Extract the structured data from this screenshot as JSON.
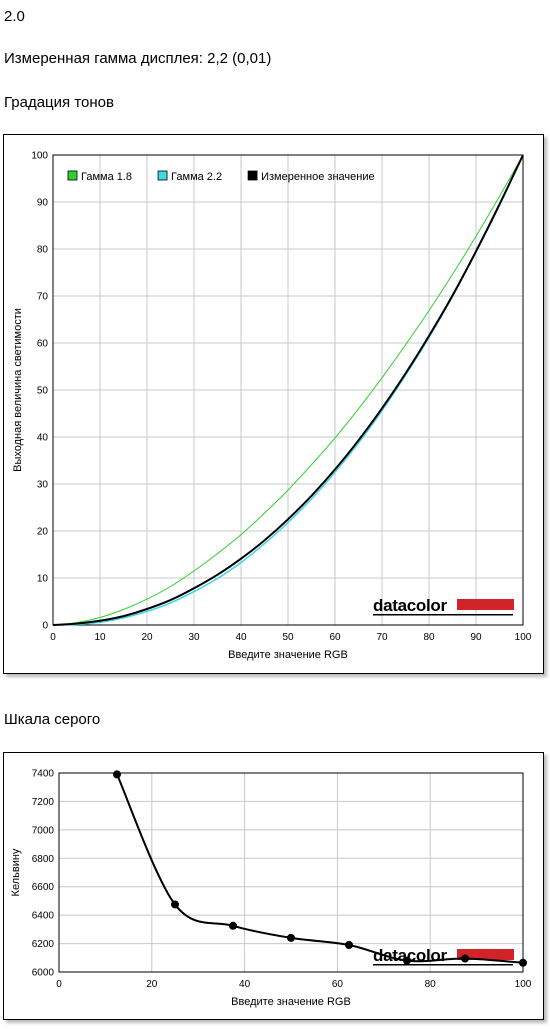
{
  "header": {
    "version": "2.0",
    "measured_gamma": "Измеренная гамма дисплея: 2,2 (0,01)",
    "tone_title": "Градация тонов",
    "gray_title": "Шкала серого"
  },
  "logo": {
    "text": "datacolor",
    "accent_color": "#d2232a"
  },
  "chart_data": [
    {
      "type": "line",
      "xlabel": "Введите значение RGB",
      "ylabel": "Выходная величина светимости",
      "xlim": [
        0,
        100
      ],
      "ylim": [
        0,
        100
      ],
      "xticks": [
        0,
        10,
        20,
        30,
        40,
        50,
        60,
        70,
        80,
        90,
        100
      ],
      "yticks": [
        0,
        10,
        20,
        30,
        40,
        50,
        60,
        70,
        80,
        90,
        100
      ],
      "grid": true,
      "legend": "top-left",
      "series": [
        {
          "name": "Гамма 1.8",
          "color": "#2ed12e",
          "width": 1,
          "x": [
            0,
            5,
            10,
            15,
            20,
            25,
            30,
            35,
            40,
            45,
            50,
            55,
            60,
            65,
            70,
            75,
            80,
            85,
            90,
            95,
            100
          ],
          "y": [
            0,
            0.5,
            1.6,
            3.3,
            5.5,
            8.2,
            11.5,
            15.2,
            19.2,
            23.8,
            28.7,
            34.1,
            39.8,
            46.0,
            52.6,
            59.6,
            66.9,
            74.6,
            82.7,
            91.2,
            100
          ]
        },
        {
          "name": "Гамма 2.2",
          "color": "#3fd6e6",
          "width": 1.5,
          "x": [
            0,
            5,
            10,
            15,
            20,
            25,
            30,
            35,
            40,
            45,
            50,
            55,
            60,
            65,
            70,
            75,
            80,
            85,
            90,
            95,
            100
          ],
          "y": [
            0,
            0.1,
            0.6,
            1.5,
            2.9,
            4.7,
            7.1,
            9.9,
            13.3,
            17.3,
            21.8,
            26.8,
            32.5,
            38.7,
            45.6,
            53.1,
            61.2,
            69.9,
            79.3,
            89.3,
            100
          ]
        },
        {
          "name": "Измеренное значение",
          "color": "#000000",
          "width": 2,
          "x": [
            0,
            5,
            10,
            15,
            20,
            25,
            30,
            35,
            40,
            45,
            50,
            55,
            60,
            65,
            70,
            75,
            80,
            85,
            90,
            95,
            100
          ],
          "y": [
            0,
            0.3,
            0.9,
            1.9,
            3.4,
            5.3,
            7.8,
            10.7,
            14.1,
            18.0,
            22.5,
            27.5,
            33.1,
            39.3,
            46.1,
            53.5,
            61.5,
            70.1,
            79.5,
            89.5,
            100
          ]
        }
      ]
    },
    {
      "type": "line",
      "xlabel": "Введите значение RGB",
      "ylabel": "Кельвину",
      "xlim": [
        0,
        100
      ],
      "ylim": [
        6000,
        7400
      ],
      "xticks": [
        0,
        20,
        40,
        60,
        80,
        100
      ],
      "yticks": [
        6000,
        6200,
        6400,
        6600,
        6800,
        7000,
        7200,
        7400
      ],
      "grid": true,
      "series": [
        {
          "color": "#000000",
          "x": [
            12.5,
            25,
            37.5,
            50,
            62.5,
            75,
            87.5,
            100
          ],
          "y": [
            7390,
            6475,
            6325,
            6240,
            6190,
            6080,
            6095,
            6065
          ]
        }
      ]
    }
  ]
}
